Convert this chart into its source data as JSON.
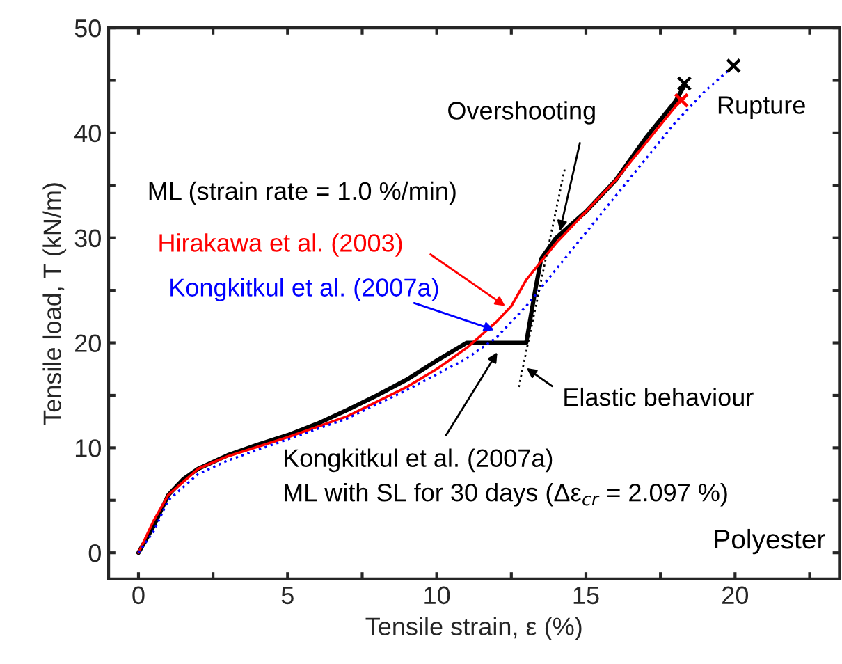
{
  "chart_data": {
    "type": "line",
    "xlabel": "Tensile strain, ε (%)",
    "ylabel": "Tensile load, T (kN/m)",
    "xlim": [
      -1,
      23.5
    ],
    "ylim": [
      -2.5,
      50
    ],
    "xticks": [
      0,
      {
        "value": 2.5,
        "label": null
      },
      5,
      {
        "value": 7.5,
        "label": null
      },
      10,
      {
        "value": 12.5,
        "label": null
      },
      15,
      {
        "value": 17.5,
        "label": null
      },
      20,
      {
        "value": 22.5,
        "label": null
      }
    ],
    "yticks": [
      0,
      {
        "value": 5,
        "label": null
      },
      10,
      {
        "value": 15,
        "label": null
      },
      20,
      {
        "value": 25,
        "label": null
      },
      30,
      {
        "value": 35,
        "label": null
      },
      40,
      {
        "value": 45,
        "label": null
      },
      50
    ],
    "grid": false,
    "legend": false,
    "series": [
      {
        "color": "#000000",
        "line_style": "solid",
        "x": [
          0,
          0.5,
          1,
          1.5,
          2,
          3,
          4,
          5,
          6,
          7,
          8,
          9,
          10,
          11,
          12,
          13,
          13.3,
          13.5,
          14,
          15,
          16,
          17,
          18,
          18.3
        ],
        "values": [
          0,
          2.5,
          5.5,
          7,
          8,
          9.3,
          10.3,
          11.2,
          12.3,
          13.6,
          15,
          16.5,
          18.3,
          20,
          20,
          20,
          25,
          28,
          30,
          32.5,
          35.5,
          39.5,
          43,
          44.5
        ]
      },
      {
        "color": "#ff0000",
        "line_style": "solid",
        "x": [
          0,
          0.5,
          1,
          2,
          3,
          5,
          7,
          9,
          10,
          11,
          12,
          12.5,
          13,
          14,
          15,
          16,
          17,
          18,
          18.2
        ],
        "values": [
          0,
          3,
          5.5,
          8,
          9.2,
          11,
          13,
          15.8,
          17.5,
          19.5,
          22,
          23.5,
          26,
          29.5,
          32.5,
          35.5,
          39,
          42.5,
          43.3
        ]
      },
      {
        "color": "#0000ff",
        "line_style": "dotted",
        "x": [
          0,
          0.5,
          1,
          2,
          3,
          5,
          7,
          9,
          10,
          11,
          12,
          13,
          14,
          15,
          16,
          17,
          18,
          19,
          19.8
        ],
        "values": [
          0,
          2,
          5,
          7.5,
          8.8,
          10.8,
          12.8,
          15.5,
          17,
          18.5,
          20.5,
          23.5,
          27,
          30.5,
          34,
          37.5,
          41,
          44,
          46
        ]
      },
      {
        "color": "#000000",
        "line_style": "dotted",
        "x": [
          12.75,
          14.3
        ],
        "values": [
          15.8,
          36.7
        ]
      },
      {
        "type": "scatter",
        "marker": "cross",
        "x": [
          18.3,
          18.2,
          19.95
        ],
        "values": [
          44.7,
          43.1,
          46.4
        ],
        "colors": [
          "#000000",
          "#ff0000",
          "#000000"
        ]
      }
    ],
    "annotations": [
      "ML (strain rate = 1.0 %/min)",
      {
        "text": "Hirakawa et al. (2003)",
        "x": 12.4,
        "y": 23.3
      },
      {
        "text": "Kongkitkul et al. (2007a)",
        "x": 12.05,
        "y": 21.1
      },
      {
        "text": "Kongkitkul et al. (2007a)\nML with SL for 30 days (Δε$_{cr}$ = 2.097 %)",
        "x": 12.1,
        "y": 19.4
      },
      {
        "text": "Elastic behaviour",
        "x": 12.9,
        "y": 17.8
      },
      {
        "text": "Overshooting",
        "x": 14.1,
        "y": 30.3
      },
      "Rupture",
      "Polyester"
    ]
  }
}
